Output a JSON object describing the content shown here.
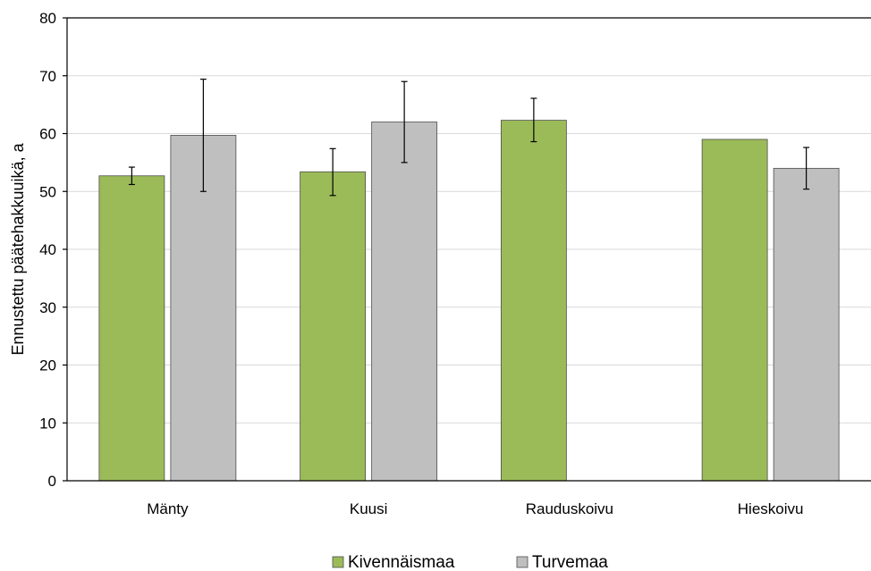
{
  "chart_data": {
    "type": "bar",
    "title": "",
    "xlabel": "",
    "ylabel": "Ennustettu päätehakkuuikä, a",
    "ylim": [
      0,
      80
    ],
    "yticks": [
      0,
      10,
      20,
      30,
      40,
      50,
      60,
      70,
      80
    ],
    "grid": true,
    "legend_position": "bottom",
    "categories": [
      "Mänty",
      "Kuusi",
      "Rauduskoivu",
      "Hieskoivu"
    ],
    "series": [
      {
        "name": "Kivennäismaa",
        "color": "#9bbb59",
        "values": [
          52.7,
          53.4,
          62.3,
          59.0
        ],
        "error_low": [
          51.2,
          49.3,
          58.6,
          null
        ],
        "error_high": [
          54.2,
          57.4,
          66.1,
          null
        ]
      },
      {
        "name": "Turvemaa",
        "color": "#bfbfbf",
        "values": [
          59.7,
          62.0,
          null,
          54.0
        ],
        "error_low": [
          50.0,
          55.0,
          null,
          50.4
        ],
        "error_high": [
          69.4,
          69.0,
          null,
          57.6
        ]
      }
    ]
  }
}
